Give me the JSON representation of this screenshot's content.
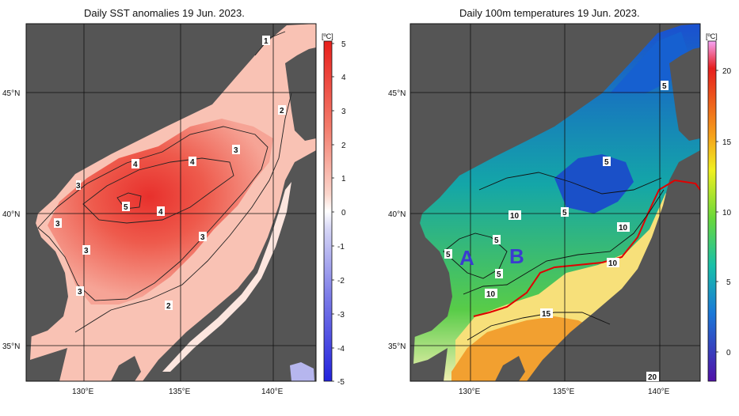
{
  "left_map": {
    "title": "Daily SST anomalies 19 Jun. 2023.",
    "unit": "[ºC]",
    "colorbar_ticks": [
      "5",
      "4",
      "3",
      "2",
      "1",
      "0",
      "-1",
      "-2",
      "-3",
      "-4",
      "-5"
    ],
    "lat_labels": [
      "45°N",
      "40°N",
      "35°N"
    ],
    "lon_labels": [
      "130°E",
      "135°E",
      "140°E"
    ],
    "contour_labels": [
      "1",
      "2",
      "3",
      "4",
      "4",
      "5",
      "4",
      "3",
      "3",
      "3",
      "3",
      "3",
      "2"
    ]
  },
  "right_map": {
    "title": "Daily 100m temperatures 19 Jun. 2023.",
    "unit": "[ºC]",
    "colorbar_ticks": [
      "20",
      "15",
      "10",
      "5",
      "0"
    ],
    "lat_labels": [
      "45°N",
      "40°N",
      "35°N"
    ],
    "lon_labels": [
      "130°E",
      "135°E",
      "140°E"
    ],
    "contour_labels": [
      "5",
      "5",
      "10",
      "5",
      "10",
      "5",
      "5",
      "5",
      "10",
      "10",
      "15",
      "20"
    ],
    "region_labels": [
      "A",
      "B"
    ]
  },
  "colors": {
    "land": "#555555",
    "sst_max": "#e8201c",
    "sst_min": "#2222dd",
    "front_line": "#e00000",
    "region_text": "#3b3bd0"
  }
}
